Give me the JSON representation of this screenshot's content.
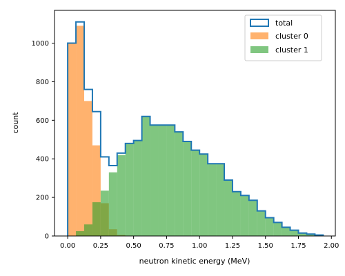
{
  "chart_data": {
    "type": "histogram",
    "xlabel": "neutron kinetic energy (MeV)",
    "ylabel": "count",
    "xlim": [
      -0.1,
      2.03
    ],
    "ylim": [
      0,
      1170
    ],
    "bin_start": 0.0,
    "bin_width": 0.0625,
    "x_ticks": [
      "0.00",
      "0.25",
      "0.50",
      "0.75",
      "1.00",
      "1.25",
      "1.50",
      "1.75",
      "2.00"
    ],
    "x_tick_values": [
      0.0,
      0.25,
      0.5,
      0.75,
      1.0,
      1.25,
      1.5,
      1.75,
      2.0
    ],
    "y_ticks": [
      "0",
      "200",
      "400",
      "600",
      "800",
      "1000"
    ],
    "y_tick_values": [
      0,
      200,
      400,
      600,
      800,
      1000
    ],
    "grid": false,
    "legend_position": "upper-right",
    "series": [
      {
        "name": "total",
        "style": "step",
        "color": "#1f77b4",
        "values": [
          1000,
          1110,
          760,
          645,
          410,
          365,
          430,
          480,
          495,
          620,
          575,
          575,
          575,
          540,
          490,
          445,
          425,
          375,
          375,
          290,
          230,
          210,
          185,
          130,
          95,
          70,
          45,
          30,
          15,
          10,
          5
        ]
      },
      {
        "name": "cluster 0",
        "style": "bar",
        "color": "#ff7f0e",
        "alpha": 0.6,
        "values": [
          1000,
          1090,
          700,
          470,
          170,
          35,
          5,
          0,
          0,
          0,
          0,
          0,
          0,
          0,
          0,
          0,
          0,
          0,
          0,
          0,
          0,
          0,
          0,
          0,
          0,
          0,
          0,
          0,
          0,
          0,
          0
        ]
      },
      {
        "name": "cluster 1",
        "style": "bar",
        "color": "#2ca02c",
        "alpha": 0.6,
        "values": [
          0,
          25,
          60,
          175,
          235,
          330,
          420,
          480,
          495,
          620,
          575,
          575,
          575,
          540,
          490,
          445,
          425,
          375,
          375,
          290,
          230,
          210,
          185,
          130,
          95,
          70,
          45,
          30,
          15,
          10,
          5
        ]
      }
    ]
  }
}
